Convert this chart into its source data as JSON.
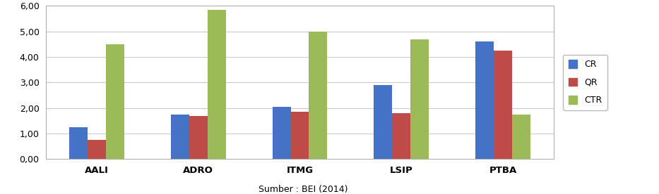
{
  "categories": [
    "AALI",
    "ADRO",
    "ITMG",
    "LSIP",
    "PTBA"
  ],
  "series": {
    "CR": [
      1.25,
      1.75,
      2.05,
      2.9,
      4.6
    ],
    "QR": [
      0.75,
      1.7,
      1.85,
      1.8,
      4.25
    ],
    "CTR": [
      4.5,
      5.85,
      5.0,
      4.7,
      1.75
    ]
  },
  "colors": {
    "CR": "#4472C4",
    "QR": "#BE4B48",
    "CTR": "#9BBB59"
  },
  "ylim": [
    0,
    6.0
  ],
  "yticks": [
    0.0,
    1.0,
    2.0,
    3.0,
    4.0,
    5.0,
    6.0
  ],
  "source_label": "Sumber : BEI (2014)",
  "background_color": "#ffffff",
  "grid_color": "#bbbbbb",
  "bar_width": 0.18,
  "legend_labels": [
    "CR",
    "QR",
    "CTR"
  ]
}
